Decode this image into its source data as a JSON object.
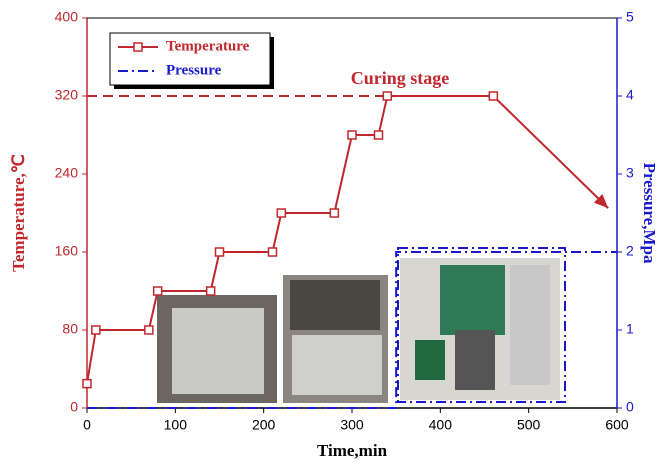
{
  "chart_data": {
    "type": "line",
    "xlabel": "Time,min",
    "ylabel": "Temperature,℃",
    "y2label": "Pressure,Mpa",
    "annotation": "Curing stage",
    "curing_line": {
      "y": 320,
      "x": [
        0,
        340
      ],
      "color": "#c0282d"
    },
    "xlim": [
      0,
      600
    ],
    "xticks": [
      0,
      100,
      200,
      300,
      400,
      500,
      600
    ],
    "ylim": [
      0,
      400
    ],
    "yticks": [
      0,
      80,
      160,
      240,
      320,
      400
    ],
    "y2lim": [
      0,
      5
    ],
    "y2ticks": [
      0,
      1,
      2,
      3,
      4,
      5
    ],
    "series": [
      {
        "name": "Temperature",
        "color": "#c0282d",
        "marker": "square",
        "end_arrow": true,
        "x": [
          0,
          10,
          70,
          80,
          140,
          150,
          210,
          220,
          280,
          300,
          330,
          340,
          460,
          590
        ],
        "values": [
          25,
          80,
          80,
          120,
          120,
          160,
          160,
          200,
          200,
          280,
          280,
          320,
          320,
          205
        ]
      },
      {
        "name": "Pressure",
        "color": "#1a1acd",
        "axis": "y2",
        "x": [
          0,
          350,
          350,
          600
        ],
        "values": [
          0,
          0,
          2,
          2
        ]
      }
    ],
    "legend": "upper left"
  }
}
